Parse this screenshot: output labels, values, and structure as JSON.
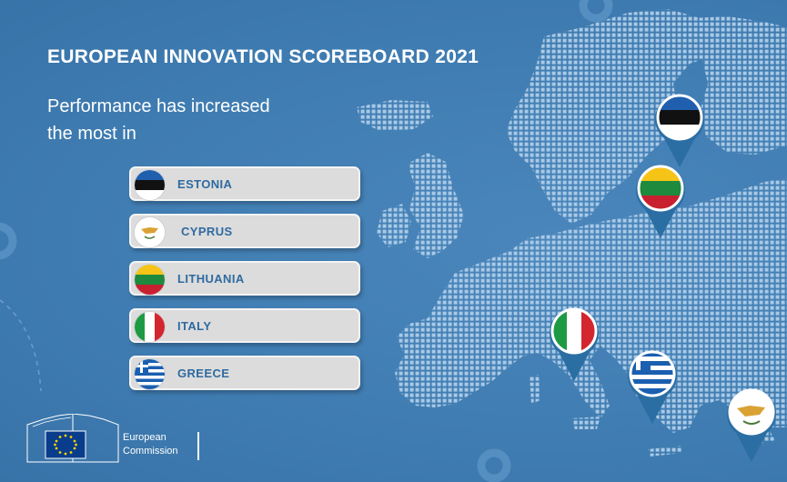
{
  "header": {
    "title": "EUROPEAN INNOVATION SCOREBOARD 2021",
    "subtitle_line1": "Performance has increased",
    "subtitle_line2": "the most in"
  },
  "countries": [
    {
      "name": "ESTONIA",
      "flag_icon": "estonia-flag-icon"
    },
    {
      "name": "CYPRUS",
      "flag_icon": "cyprus-flag-icon"
    },
    {
      "name": "LITHUANIA",
      "flag_icon": "lithuania-flag-icon"
    },
    {
      "name": "ITALY",
      "flag_icon": "italy-flag-icon"
    },
    {
      "name": "GREECE",
      "flag_icon": "greece-flag-icon"
    }
  ],
  "logo": {
    "line1": "European",
    "line2": "Commission"
  },
  "colors": {
    "background": "#3f7cb1",
    "map_dots": "#a9c9e6",
    "pill_text": "#2f6aa0",
    "pin": "#2b6ea3"
  }
}
